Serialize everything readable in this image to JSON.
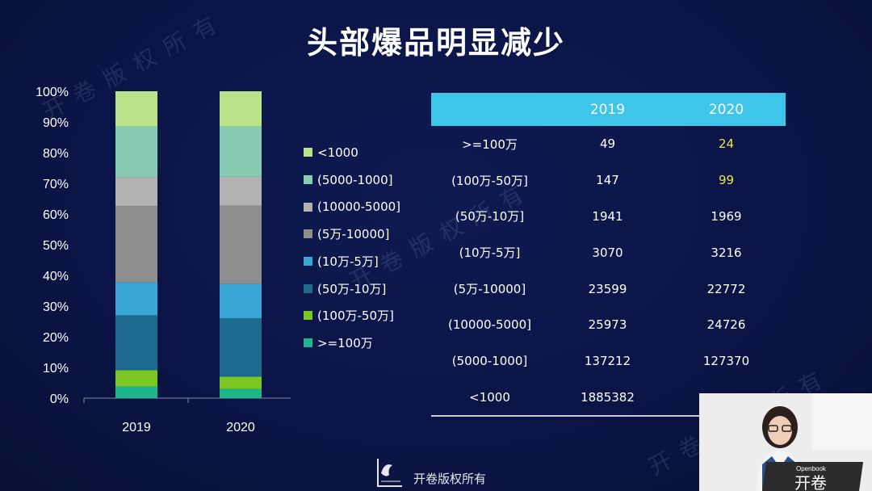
{
  "slide": {
    "title": "头部爆品明显减少"
  },
  "watermark_text": "开卷版权所有",
  "chart_data": {
    "type": "bar",
    "stacked": true,
    "categories": [
      "2019",
      "2020"
    ],
    "ylim": [
      0,
      100
    ],
    "y_ticks": [
      "0%",
      "10%",
      "20%",
      "30%",
      "40%",
      "50%",
      "60%",
      "70%",
      "80%",
      "90%",
      "100%"
    ],
    "series": [
      {
        "name": ">=100万",
        "color": "#1fb58b",
        "values": [
          3.8,
          3.0
        ]
      },
      {
        "name": "(100万-50万]",
        "color": "#7dc722",
        "values": [
          5.3,
          4.0
        ]
      },
      {
        "name": "(50万-10万]",
        "color": "#1d6a8f",
        "values": [
          17.9,
          19.0
        ]
      },
      {
        "name": "(10万-5万]",
        "color": "#3aa6d6",
        "values": [
          10.8,
          11.2
        ]
      },
      {
        "name": "(5万-10000]",
        "color": "#8e8e8e",
        "values": [
          24.8,
          25.5
        ]
      },
      {
        "name": "(10000-5000]",
        "color": "#b2b2b2",
        "values": [
          9.4,
          9.5
        ]
      },
      {
        "name": "(5000-1000]",
        "color": "#86cbb2",
        "values": [
          16.5,
          16.3
        ]
      },
      {
        "name": "<1000",
        "color": "#b8e38a",
        "values": [
          11.5,
          11.5
        ]
      }
    ],
    "legend_order": [
      "<1000",
      "(5000-1000]",
      "(10000-5000]",
      "(5万-10000]",
      "(10万-5万]",
      "(50万-10万]",
      "(100万-50万]",
      ">=100万"
    ]
  },
  "table": {
    "headers": [
      "",
      "2019",
      "2020"
    ],
    "highlight_color": "#e8e84a",
    "rows": [
      {
        "label": ">=100万",
        "v2019": "49",
        "v2020": "24",
        "highlight2020": true
      },
      {
        "label": "(100万-50万]",
        "v2019": "147",
        "v2020": "99",
        "highlight2020": true
      },
      {
        "label": "(50万-10万]",
        "v2019": "1941",
        "v2020": "1969",
        "highlight2020": false
      },
      {
        "label": "(10万-5万]",
        "v2019": "3070",
        "v2020": "3216",
        "highlight2020": false
      },
      {
        "label": "(5万-10000]",
        "v2019": "23599",
        "v2020": "22772",
        "highlight2020": false
      },
      {
        "label": "(10000-5000]",
        "v2019": "25973",
        "v2020": "24726",
        "highlight2020": false
      },
      {
        "label": "(5000-1000]",
        "v2019": "137212",
        "v2020": "127370",
        "highlight2020": false
      },
      {
        "label": "<1000",
        "v2019": "1885382",
        "v2020": "",
        "highlight2020": false
      }
    ]
  },
  "footer": {
    "logo_text": "开卷版权所有",
    "logo_icon": "openbook-logo-icon"
  },
  "webcam": {
    "laptop_label": "Openbook",
    "sign_text": "开卷"
  }
}
